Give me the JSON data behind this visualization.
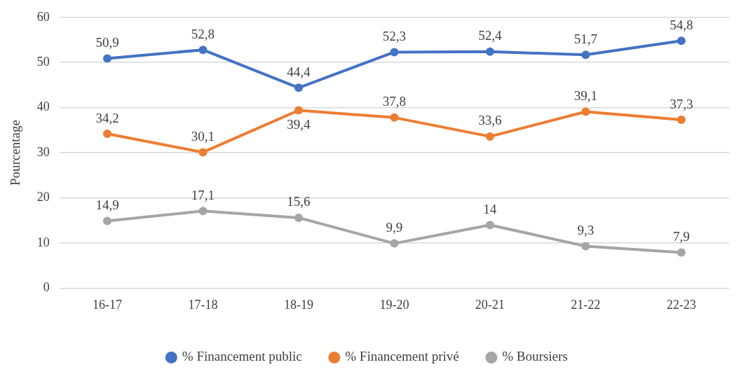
{
  "chart_data": {
    "type": "line",
    "ylabel": "Pourcentage",
    "categories": [
      "16-17",
      "17-18",
      "18-19",
      "19-20",
      "20-21",
      "21-22",
      "22-23"
    ],
    "series": [
      {
        "name": "% Financement public",
        "color": "#4472c4",
        "values": [
          50.9,
          52.8,
          44.4,
          52.3,
          52.4,
          51.7,
          54.8
        ],
        "value_labels": [
          "50,9",
          "52,8",
          "44,4",
          "52,3",
          "52,4",
          "51,7",
          "54,8"
        ]
      },
      {
        "name": "% Financement privé",
        "color": "#ed7d31",
        "values": [
          34.2,
          30.1,
          39.4,
          37.8,
          33.6,
          39.1,
          37.3
        ],
        "value_labels": [
          "34,2",
          "30,1",
          "39,4",
          "37,8",
          "33,6",
          "39,1",
          "37,3"
        ]
      },
      {
        "name": "% Boursiers",
        "color": "#a5a5a5",
        "values": [
          14.9,
          17.1,
          15.6,
          9.9,
          14,
          9.3,
          7.9
        ],
        "value_labels": [
          "14,9",
          "17,1",
          "15,6",
          "9,9",
          "14",
          "9,3",
          "7,9"
        ]
      }
    ],
    "ylim": [
      0,
      60
    ],
    "yticks": [
      0,
      10,
      20,
      30,
      40,
      50,
      60
    ],
    "grid": "y",
    "legend": "bottom",
    "marker": "circle",
    "line_style": "solid"
  }
}
